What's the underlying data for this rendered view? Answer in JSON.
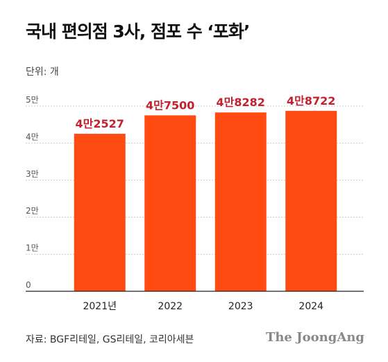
{
  "title": "국내 편의점 3사, 점포 수 ‘포화’",
  "unit_label": "단위: 개",
  "source": "자료: BGF리테일, GS리테일, 코리아세븐",
  "brand": "The JoongAng",
  "colors": {
    "bar": "#FF4A12",
    "label": "#C2222E",
    "grid": "#cccccc",
    "axis": "#222222",
    "tick_text": "#555555"
  },
  "chart_data": {
    "type": "bar",
    "categories": [
      "2021년",
      "2022",
      "2023",
      "2024"
    ],
    "values": [
      42527,
      47500,
      48282,
      48722
    ],
    "data_labels": [
      "4만2527",
      "4만7500",
      "4만8282",
      "4만8722"
    ],
    "y_ticks": [
      0,
      10000,
      20000,
      30000,
      40000,
      50000
    ],
    "y_tick_labels": [
      "0",
      "1만",
      "2만",
      "3만",
      "4만",
      "5만"
    ],
    "ylim": [
      0,
      50000
    ],
    "grid": true,
    "title": "국내 편의점 3사, 점포 수 ‘포화’",
    "ylabel": "단위: 개",
    "xlabel": ""
  }
}
